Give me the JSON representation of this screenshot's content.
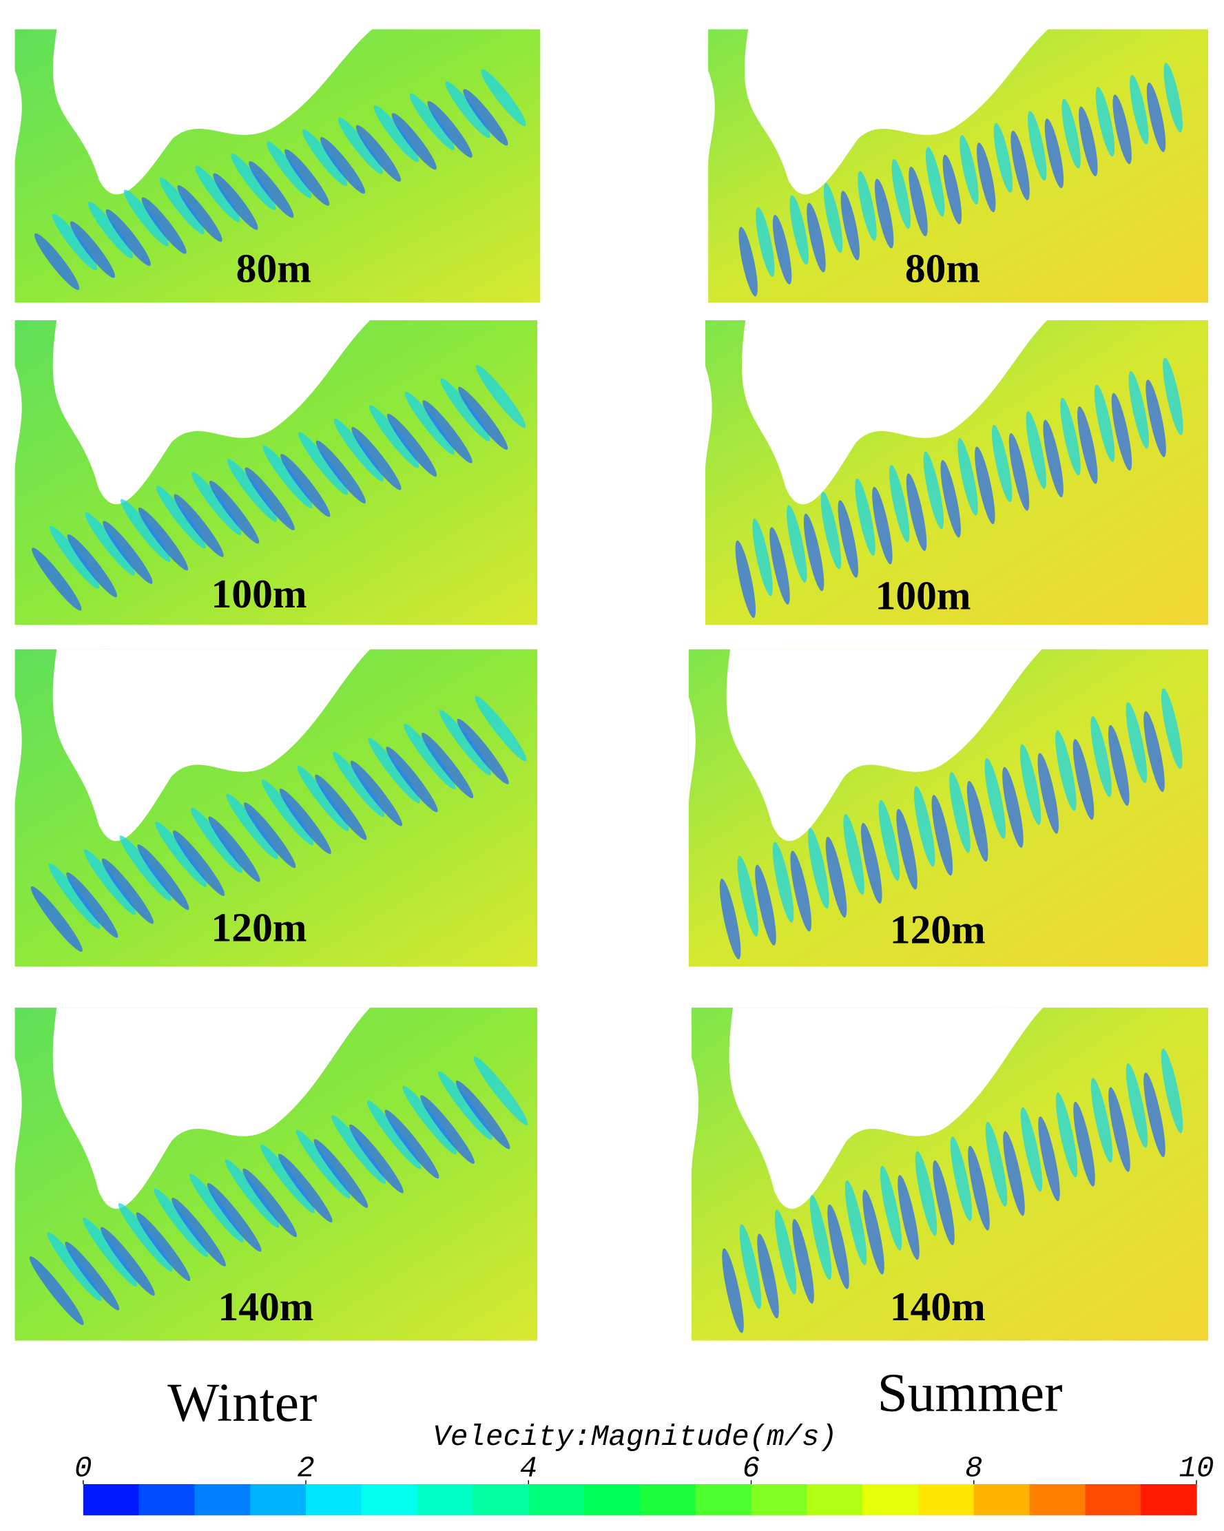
{
  "chart_data": {
    "type": "contour",
    "columns": [
      {
        "title": "Winter",
        "panels": [
          "80m",
          "100m",
          "120m",
          "140m"
        ]
      },
      {
        "title": "Summer",
        "panels": [
          "80m",
          "100m",
          "120m",
          "140m"
        ]
      }
    ],
    "colorbar": {
      "title": "Velecity:Magnitude(m/s)",
      "clim": [
        0,
        10
      ],
      "ticks": [
        0,
        2,
        4,
        6,
        8,
        10
      ],
      "colors": [
        "#0000ff",
        "#00ffff",
        "#00ff40",
        "#ffff00",
        "#ff0000"
      ],
      "levels": 20
    }
  }
}
